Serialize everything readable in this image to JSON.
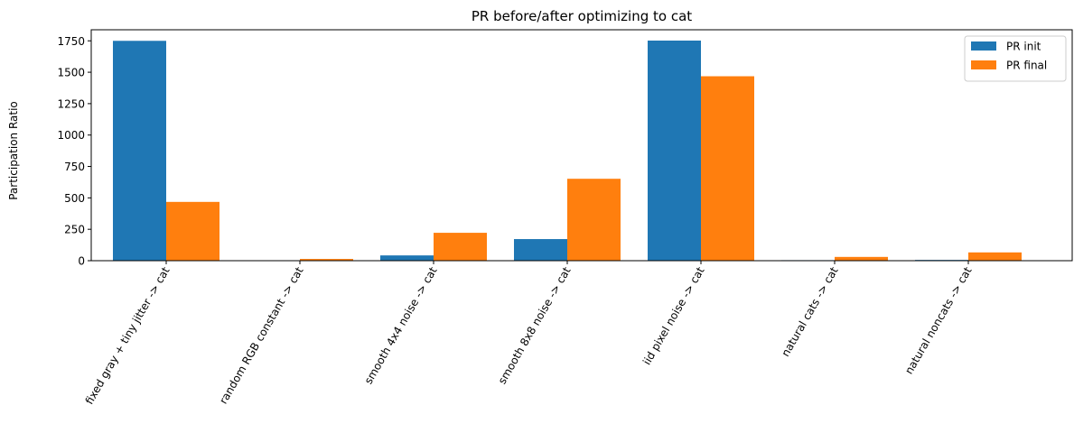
{
  "chart_data": {
    "type": "bar",
    "title": "PR before/after optimizing to cat",
    "xlabel": "",
    "ylabel": "Participation Ratio",
    "categories": [
      "fixed gray + tiny jitter -> cat",
      "random RGB constant -> cat",
      "smooth 4x4 noise -> cat",
      "smooth 8x8 noise -> cat",
      "iid pixel noise -> cat",
      "natural cats -> cat",
      "natural noncats -> cat"
    ],
    "series": [
      {
        "name": "PR init",
        "color": "#1f77b4",
        "values": [
          1750,
          1,
          42,
          172,
          1752,
          4,
          6
        ]
      },
      {
        "name": "PR final",
        "color": "#ff7f0e",
        "values": [
          468,
          14,
          222,
          652,
          1468,
          30,
          66
        ]
      }
    ],
    "ylim": [
      0,
      1838
    ],
    "yticks": [
      0,
      250,
      500,
      750,
      1000,
      1250,
      1500,
      1750
    ],
    "grid": false,
    "legend_position": "top-right"
  }
}
